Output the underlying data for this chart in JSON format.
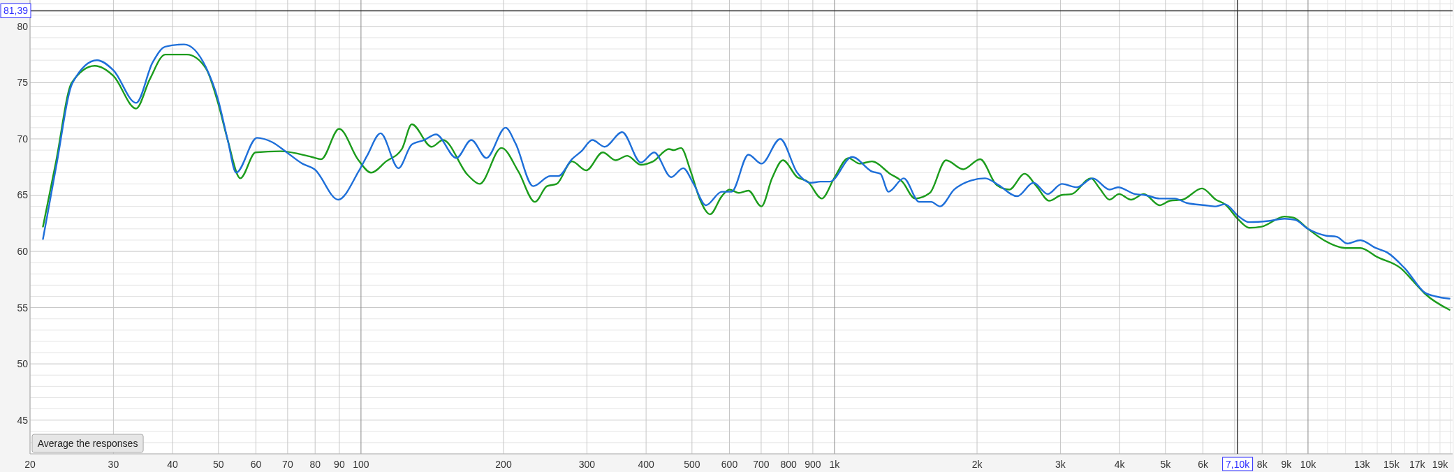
{
  "chart_data": {
    "type": "line",
    "log": "x",
    "grid": true,
    "xlim": [
      20,
      20200
    ],
    "ylim": [
      42,
      82.35
    ],
    "xticks": [
      20,
      30,
      40,
      50,
      60,
      70,
      80,
      90,
      100,
      200,
      300,
      400,
      500,
      600,
      700,
      800,
      900,
      {
        "value": 1000,
        "label": "1k"
      },
      {
        "value": 2000,
        "label": "2k"
      },
      {
        "value": 3000,
        "label": "3k"
      },
      {
        "value": 4000,
        "label": "4k"
      },
      {
        "value": 5000,
        "label": "5k"
      },
      {
        "value": 6000,
        "label": "6k"
      },
      {
        "value": 7000,
        "label": null
      },
      {
        "value": 8000,
        "label": "8k"
      },
      {
        "value": 9000,
        "label": "9k"
      },
      {
        "value": 10000,
        "label": "10k"
      },
      {
        "value": 11000,
        "label": null
      },
      {
        "value": 12000,
        "label": null
      },
      {
        "value": 13000,
        "label": "13k"
      },
      {
        "value": 14000,
        "label": null
      },
      {
        "value": 15000,
        "label": "15k"
      },
      {
        "value": 16000,
        "label": null
      },
      {
        "value": 17000,
        "label": "17k"
      },
      {
        "value": 18000,
        "label": null
      },
      {
        "value": 19000,
        "label": "19k"
      },
      {
        "value": 20000,
        "label": null
      }
    ],
    "yticks": [
      {
        "value": 42,
        "label": null
      },
      {
        "value": 43,
        "label": null
      },
      {
        "value": 44,
        "label": null
      },
      45,
      {
        "value": 46,
        "label": null
      },
      {
        "value": 47,
        "label": null
      },
      {
        "value": 48,
        "label": null
      },
      {
        "value": 49,
        "label": null
      },
      50,
      {
        "value": 51,
        "label": null
      },
      {
        "value": 52,
        "label": null
      },
      {
        "value": 53,
        "label": null
      },
      {
        "value": 54,
        "label": null
      },
      55,
      {
        "value": 56,
        "label": null
      },
      {
        "value": 57,
        "label": null
      },
      {
        "value": 58,
        "label": null
      },
      {
        "value": 59,
        "label": null
      },
      60,
      {
        "value": 61,
        "label": null
      },
      {
        "value": 62,
        "label": null
      },
      {
        "value": 63,
        "label": null
      },
      {
        "value": 64,
        "label": null
      },
      65,
      {
        "value": 66,
        "label": null
      },
      {
        "value": 67,
        "label": null
      },
      {
        "value": 68,
        "label": null
      },
      {
        "value": 69,
        "label": null
      },
      70,
      {
        "value": 71,
        "label": null
      },
      {
        "value": 72,
        "label": null
      },
      {
        "value": 73,
        "label": null
      },
      {
        "value": 74,
        "label": null
      },
      75,
      {
        "value": 76,
        "label": null
      },
      {
        "value": 77,
        "label": null
      },
      {
        "value": 78,
        "label": null
      },
      {
        "value": 79,
        "label": null
      },
      80,
      {
        "value": 81,
        "label": null
      },
      {
        "value": 82,
        "label": null
      }
    ],
    "series": [
      {
        "color": "#1c9c1c",
        "x": [
          21.3,
          22.7,
          24.5,
          27.4,
          30,
          33.5,
          35.8,
          38.6,
          42.9,
          47.0,
          49.9,
          52.3,
          55.6,
          59.9,
          67.6,
          78.6,
          82.4,
          89.9,
          98.8,
          105,
          113,
          122,
          128,
          141,
          149,
          168,
          178,
          198,
          215,
          233,
          247,
          259,
          279,
          299,
          324,
          345,
          365,
          390,
          414,
          447,
          458,
          474,
          497,
          520,
          546,
          578,
          600,
          628,
          658,
          701,
          738,
          778,
          834,
          878,
          940,
          998,
          1070,
          1130,
          1200,
          1310,
          1390,
          1480,
          1590,
          1720,
          1870,
          2030,
          2200,
          2340,
          2520,
          2670,
          2840,
          3010,
          3170,
          3480,
          3630,
          3810,
          3990,
          4230,
          4500,
          4860,
          5110,
          5430,
          5970,
          6390,
          6670,
          7140,
          7510,
          7980,
          8920,
          9310,
          10000,
          10800,
          12000,
          12900,
          14000,
          15700,
          16800,
          17700,
          19900
        ],
        "values": [
          62.2,
          68.0,
          75.0,
          76.5,
          75.6,
          72.7,
          75.3,
          77.5,
          77.5,
          76.3,
          73.2,
          69.9,
          66.5,
          68.8,
          68.9,
          68.4,
          68.2,
          70.9,
          68.1,
          67.0,
          68.0,
          69.1,
          71.3,
          69.3,
          69.9,
          66.8,
          66.0,
          69.2,
          67.1,
          64.4,
          65.8,
          66.0,
          68.0,
          67.2,
          68.8,
          68.1,
          68.5,
          67.7,
          68.0,
          69.1,
          69.0,
          69.2,
          67.1,
          64.6,
          63.3,
          64.9,
          65.5,
          65.2,
          65.4,
          64.0,
          66.5,
          68.1,
          66.6,
          66.2,
          64.7,
          66.5,
          68.3,
          67.8,
          68.0,
          66.9,
          66.2,
          64.7,
          65.2,
          68.1,
          67.3,
          68.2,
          65.9,
          65.5,
          66.9,
          65.8,
          64.5,
          65.0,
          65.1,
          66.5,
          65.6,
          64.6,
          65.1,
          64.6,
          65.1,
          64.1,
          64.5,
          64.6,
          65.6,
          64.6,
          64.2,
          62.8,
          62.1,
          62.2,
          63.1,
          63.0,
          62.0,
          61.0,
          60.3,
          60.3,
          59.5,
          58.5,
          57.2,
          56.2,
          54.8
        ]
      },
      {
        "color": "#1e6fd9",
        "x": [
          21.3,
          22.7,
          24.6,
          27.7,
          30,
          33.5,
          36.3,
          38.6,
          42.3,
          47.0,
          49.9,
          52.3,
          54.5,
          60.3,
          65.0,
          69.7,
          75.2,
          79.8,
          89.5,
          98.8,
          103,
          110,
          120,
          128,
          136,
          144,
          159,
          171,
          184,
          202,
          212,
          231,
          251,
          261,
          279,
          292,
          308,
          327,
          356,
          390,
          416,
          452,
          479,
          504,
          535,
          578,
          606,
          658,
          701,
          768,
          834,
          892,
          934,
          978,
          1090,
          1200,
          1250,
          1300,
          1400,
          1510,
          1600,
          1670,
          1790,
          1940,
          2080,
          2220,
          2430,
          2630,
          2820,
          3020,
          3250,
          3510,
          3810,
          3970,
          4310,
          4530,
          4860,
          5230,
          5550,
          6060,
          6390,
          6670,
          7140,
          7510,
          8250,
          8920,
          9390,
          10000,
          10900,
          11500,
          12100,
          12900,
          13900,
          14700,
          16000,
          17700,
          18600,
          19900
        ],
        "values": [
          61.1,
          67.5,
          75.0,
          77.0,
          76.1,
          73.2,
          76.8,
          78.2,
          78.4,
          76.4,
          73.5,
          69.9,
          67.0,
          70.1,
          69.7,
          68.8,
          67.8,
          67.3,
          64.6,
          67.1,
          68.5,
          70.5,
          67.4,
          69.5,
          69.9,
          70.4,
          68.3,
          69.9,
          68.3,
          71.0,
          69.6,
          65.8,
          66.7,
          66.7,
          68.2,
          68.9,
          69.9,
          69.3,
          70.6,
          67.9,
          68.8,
          66.6,
          67.4,
          66.0,
          64.1,
          65.3,
          65.3,
          68.6,
          67.8,
          70.0,
          67.0,
          66.1,
          66.2,
          66.2,
          68.4,
          67.1,
          66.9,
          65.3,
          66.5,
          64.4,
          64.4,
          64.0,
          65.5,
          66.3,
          66.5,
          65.9,
          64.9,
          66.1,
          65.1,
          66.0,
          65.7,
          66.5,
          65.5,
          65.7,
          65.1,
          65.0,
          64.7,
          64.7,
          64.3,
          64.1,
          64.0,
          64.2,
          63.1,
          62.6,
          62.7,
          62.9,
          62.8,
          62.0,
          61.4,
          61.3,
          60.7,
          61.0,
          60.3,
          59.9,
          58.5,
          56.3,
          56.0,
          55.8
        ]
      }
    ],
    "ref_lines": [
      {
        "axis": "y",
        "value": 81.39,
        "label": "81,39",
        "color": "#333333"
      },
      {
        "axis": "x",
        "value": 7100,
        "label": "7,10k",
        "color": "#333333"
      }
    ],
    "annotations": [
      "Average the responses"
    ]
  }
}
